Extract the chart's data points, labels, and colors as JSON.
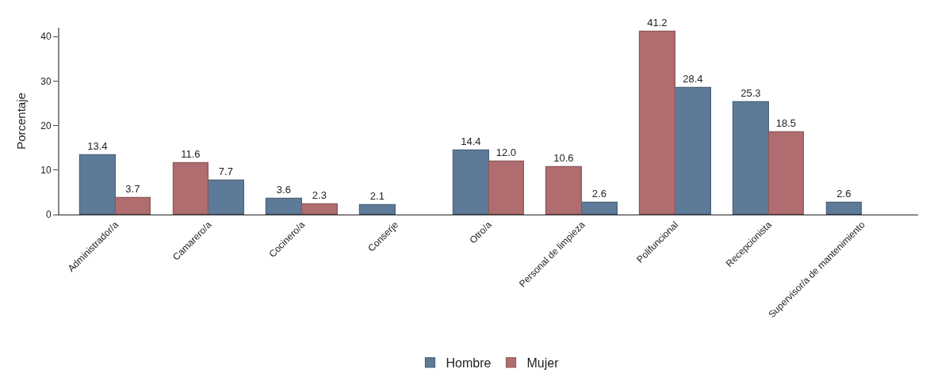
{
  "chart_data": {
    "type": "bar",
    "ylabel": "Porcentaje",
    "categories": [
      "Administrador/a",
      "Camarero/a",
      "Cocinero/a",
      "Conserje",
      "Otro/a",
      "Personal de limpieza",
      "Polifuncional",
      "Recepcionista",
      "Supervisor/a de mantenimiento"
    ],
    "series": [
      {
        "name": "Hombre",
        "color": "#5d7b98",
        "values": [
          13.4,
          7.7,
          3.6,
          2.1,
          14.4,
          2.6,
          28.4,
          25.3,
          2.6
        ],
        "value_labels": [
          "13.4",
          "7.7",
          "3.6",
          "2.1",
          "14.4",
          "2.6",
          "28.4",
          "25.3",
          "2.6"
        ]
      },
      {
        "name": "Mujer",
        "color": "#b06d6f",
        "values": [
          3.7,
          11.6,
          2.3,
          null,
          12.0,
          10.6,
          41.2,
          18.5,
          null
        ],
        "value_labels": [
          "3.7",
          "11.6",
          "2.3",
          null,
          "12.0",
          "10.6",
          "41.2",
          "18.5",
          null
        ]
      }
    ],
    "ylim": [
      0,
      42
    ],
    "yticks": [
      0,
      10,
      20,
      30,
      40
    ],
    "legend": "bottom"
  }
}
